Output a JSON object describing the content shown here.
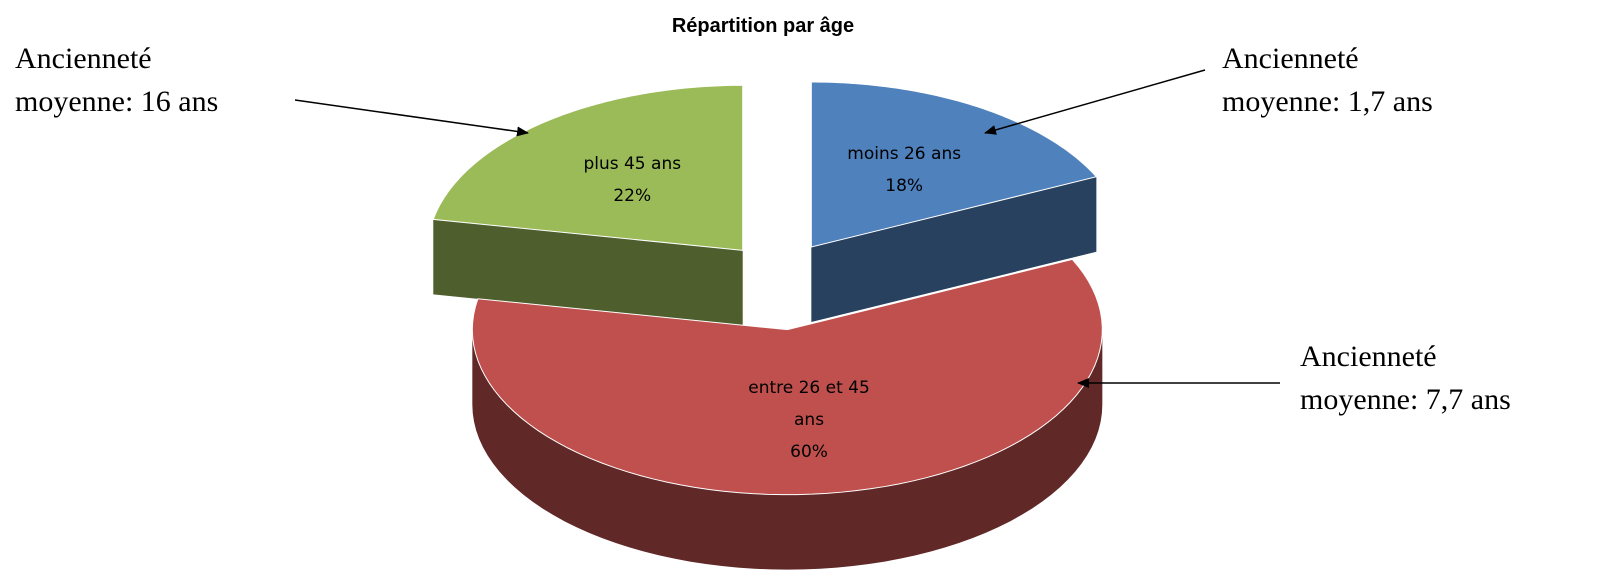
{
  "chart_data": {
    "type": "pie3d",
    "title": "Répartition par âge",
    "categories": [
      "moins 26 ans",
      "entre 26 et 45 ans",
      "plus 45 ans"
    ],
    "values": [
      18,
      60,
      22
    ],
    "value_labels": [
      "18%",
      "60%",
      "22%"
    ],
    "colors": [
      "#4f81bd",
      "#c0504d",
      "#9bbb59"
    ],
    "annotations": [
      [
        "Ancienneté",
        "moyenne: 1,7 ans"
      ],
      [
        "Ancienneté",
        "moyenne: 7,7 ans"
      ],
      [
        "Ancienneté",
        "moyenne: 16 ans"
      ]
    ]
  }
}
